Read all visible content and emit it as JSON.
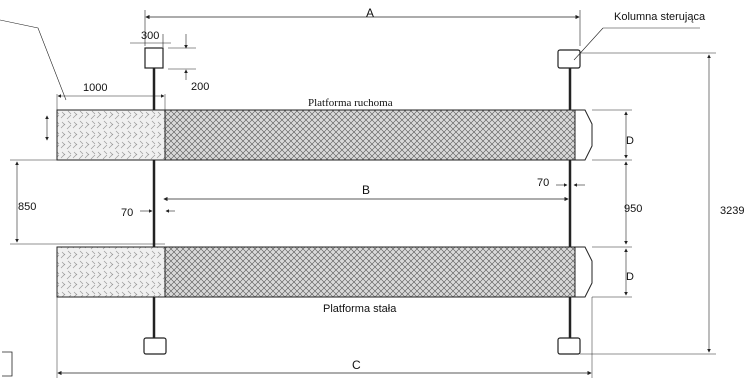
{
  "labels": {
    "dim_a": "A",
    "dim_b": "B",
    "dim_c": "C",
    "dim_d_top": "D",
    "dim_d_bottom": "D",
    "column_width": "300",
    "column_offset": "200",
    "ramp_length": "1000",
    "gap_850": "850",
    "gap_950": "950",
    "total_3239": "3239",
    "clearance_left": "70",
    "clearance_right": "70",
    "control_column": "Kolumna sterująca",
    "moving_platform": "Platforma ruchoma",
    "fixed_platform": "Platforma stała"
  },
  "colors": {
    "line": "#222222",
    "ramp_fill": "#efefef",
    "platform_fill": "#dcdcdc"
  }
}
